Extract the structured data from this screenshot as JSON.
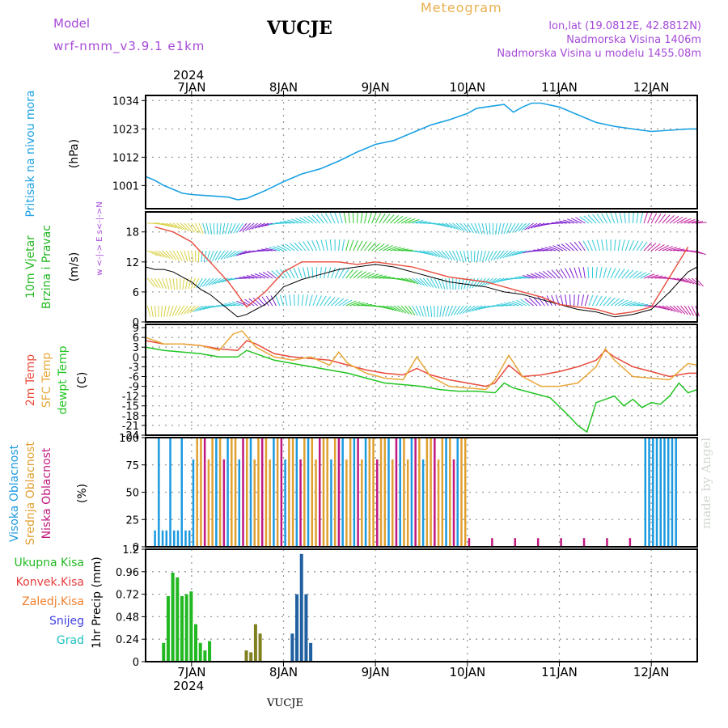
{
  "header": {
    "model_label": "Model",
    "model_name": "wrf-nmm_v3.9.1 e1km",
    "station": "VUCJE",
    "title": "Meteogram",
    "coords": "lon,lat (19.0812E, 42.8812N)",
    "elevation": "Nadmorska Visina 1406m",
    "model_elevation": "Nadmorska Visina u modelu 1455.08m",
    "credit": "made by Angel",
    "footer_station": "VUCJE"
  },
  "colors": {
    "pressure": "#1ba1e2",
    "temp2m": "#e84c3d",
    "sfc": "#e8a838",
    "dew": "#22c522",
    "high_cloud": "#1b9ae0",
    "mid_cloud": "#e0a030",
    "low_cloud": "#c01880",
    "total_precip": "#22b822",
    "conv_precip": "#e83c3c",
    "frozen_precip": "#f08030",
    "snow": "#4040e0",
    "grad": "#20c0c0",
    "header_purple": "#a64ad8",
    "header_orange": "#e8b050"
  },
  "time_axis": {
    "year": "2024",
    "top_labels": [
      "7JAN",
      "8JAN",
      "9JAN",
      "10JAN",
      "11JAN",
      "12JAN"
    ],
    "bottom_labels": [
      "7JAN",
      "8JAN",
      "9JAN",
      "10JAN",
      "11JAN",
      "12JAN"
    ]
  },
  "chart_data": [
    {
      "type": "line",
      "panel": "pressure",
      "ylabel_left": "Pritisak na nivou mora",
      "unit": "(hPa)",
      "y_ticks": [
        "1034",
        "1023",
        "1012",
        "1001"
      ],
      "ylim": [
        992,
        1036
      ],
      "x_days": [
        6.5,
        6.6,
        6.7,
        6.8,
        6.9,
        7.0,
        7.2,
        7.4,
        7.5,
        7.6,
        7.7,
        7.8,
        8.0,
        8.2,
        8.4,
        8.6,
        8.8,
        9.0,
        9.2,
        9.4,
        9.6,
        9.8,
        10.0,
        10.1,
        10.2,
        10.3,
        10.4,
        10.5,
        10.6,
        10.7,
        10.8,
        11.0,
        11.2,
        11.4,
        11.6,
        11.8,
        12.0,
        12.2,
        12.4,
        12.5
      ],
      "values": [
        1004.5,
        1003.0,
        1001.0,
        999.5,
        998.0,
        997.5,
        997.0,
        996.5,
        995.5,
        996.0,
        997.5,
        999.0,
        1002.5,
        1005.5,
        1007.5,
        1010.5,
        1014.0,
        1017.0,
        1018.5,
        1021.5,
        1024.5,
        1026.5,
        1029.0,
        1031.0,
        1031.5,
        1032.0,
        1032.5,
        1029.5,
        1031.5,
        1033.0,
        1033.0,
        1031.5,
        1028.5,
        1025.5,
        1024.0,
        1023.0,
        1022.0,
        1022.5,
        1023.0,
        1023.0
      ]
    },
    {
      "type": "line",
      "panel": "wind",
      "ylabel_left": [
        "10m Vjetar",
        "Brzina i Pravac"
      ],
      "unit": "(m/s)",
      "y_ticks": [
        "18",
        "12",
        "6",
        "0"
      ],
      "ylim": [
        0,
        22
      ],
      "compass": "w <-|-> E  s<-|->N",
      "series": [
        {
          "name": "speed",
          "x_days": [
            6.5,
            6.6,
            6.7,
            6.8,
            6.9,
            7.0,
            7.1,
            7.2,
            7.3,
            7.4,
            7.5,
            7.6,
            7.7,
            7.8,
            7.9,
            8.0,
            8.2,
            8.4,
            8.6,
            8.8,
            9.0,
            9.2,
            9.4,
            9.6,
            9.8,
            10.0,
            10.2,
            10.4,
            10.6,
            10.8,
            11.0,
            11.2,
            11.4,
            11.6,
            11.8,
            12.0,
            12.2,
            12.4,
            12.5
          ],
          "values": [
            11,
            10.5,
            10.5,
            10.0,
            9.0,
            8.0,
            6.5,
            5.5,
            4.0,
            2.5,
            1.0,
            1.5,
            2.5,
            3.5,
            5.0,
            7.0,
            8.5,
            9.5,
            10.5,
            11.0,
            11.5,
            11.0,
            10.0,
            9.0,
            8.0,
            7.5,
            7.0,
            6.0,
            5.5,
            4.5,
            3.5,
            2.5,
            2.0,
            1.0,
            1.5,
            2.5,
            6.0,
            10.0,
            11.0
          ]
        },
        {
          "name": "gust",
          "x_days": [
            6.6,
            6.8,
            7.0,
            7.2,
            7.4,
            7.6,
            7.8,
            8.0,
            8.2,
            8.4,
            8.6,
            8.8,
            9.0,
            9.2,
            9.4,
            9.6,
            9.8,
            10.0,
            10.2,
            10.4,
            10.6,
            10.8,
            11.0,
            11.2,
            11.4,
            11.6,
            11.8,
            12.0,
            12.2,
            12.4
          ],
          "values": [
            19,
            18,
            16,
            12,
            8,
            3,
            6,
            10,
            12,
            12,
            12,
            11.5,
            12,
            11.5,
            11,
            10,
            9,
            8.5,
            8,
            7,
            6,
            5,
            3.5,
            3,
            2.5,
            1.5,
            2,
            3,
            9,
            15
          ]
        }
      ]
    },
    {
      "type": "line",
      "panel": "temperature",
      "ylabel_left": [
        "2m Temp",
        "SFC Temp",
        "dewpt Temp"
      ],
      "unit": "(C)",
      "y_ticks": [
        "9",
        "6",
        "3",
        "0",
        "-3",
        "-6",
        "-9",
        "-12",
        "-15",
        "-18",
        "-21",
        "-24"
      ],
      "ylim": [
        -24,
        10
      ],
      "series": [
        {
          "name": "2m Temp",
          "x_days": [
            6.5,
            6.7,
            6.9,
            7.1,
            7.3,
            7.5,
            7.6,
            7.7,
            7.9,
            8.1,
            8.3,
            8.5,
            8.7,
            8.9,
            9.1,
            9.3,
            9.45,
            9.6,
            9.8,
            10.0,
            10.2,
            10.3,
            10.45,
            10.6,
            10.8,
            11.0,
            11.2,
            11.4,
            11.5,
            11.6,
            11.8,
            12.0,
            12.2,
            12.4,
            12.5
          ],
          "values": [
            5,
            4,
            4,
            3.5,
            2.5,
            2,
            5,
            4,
            1,
            0,
            -0.5,
            -1,
            -2.5,
            -4,
            -5,
            -5.5,
            -3.5,
            -5.5,
            -7,
            -8,
            -9,
            -8,
            -2.5,
            -6,
            -5.5,
            -4.5,
            -3,
            -1,
            2,
            0,
            -3,
            -4.5,
            -6,
            -5,
            -5
          ]
        },
        {
          "name": "SFC Temp",
          "x_days": [
            6.5,
            6.7,
            6.9,
            7.1,
            7.3,
            7.45,
            7.55,
            7.7,
            7.9,
            8.1,
            8.3,
            8.5,
            8.6,
            8.7,
            8.9,
            9.1,
            9.3,
            9.45,
            9.6,
            9.8,
            10.0,
            10.2,
            10.3,
            10.45,
            10.6,
            10.8,
            11.0,
            11.2,
            11.4,
            11.5,
            11.6,
            11.8,
            12.0,
            12.2,
            12.4,
            12.5
          ],
          "values": [
            6,
            4,
            4,
            3.5,
            2,
            7,
            8,
            3,
            0,
            -1,
            0,
            -2.5,
            1.5,
            -2,
            -5,
            -6.5,
            -7,
            0,
            -6,
            -9,
            -9.5,
            -10,
            -7,
            0.5,
            -6,
            -9,
            -9,
            -8,
            -3,
            2.5,
            -1,
            -6,
            -6.5,
            -7,
            -2,
            -2.5
          ]
        },
        {
          "name": "dewpt Temp",
          "x_days": [
            6.5,
            6.7,
            6.9,
            7.1,
            7.3,
            7.5,
            7.6,
            7.7,
            7.9,
            8.1,
            8.3,
            8.5,
            8.7,
            8.9,
            9.1,
            9.3,
            9.5,
            9.7,
            9.9,
            10.1,
            10.3,
            10.4,
            10.5,
            10.7,
            10.9,
            11.1,
            11.2,
            11.3,
            11.4,
            11.5,
            11.6,
            11.7,
            11.8,
            11.9,
            12.0,
            12.1,
            12.2,
            12.3,
            12.4,
            12.5
          ],
          "values": [
            3,
            2,
            1.5,
            1,
            0,
            0,
            2,
            1,
            -1,
            -2,
            -3,
            -4,
            -5,
            -6.5,
            -8,
            -8.5,
            -9,
            -10,
            -10.5,
            -10.5,
            -11,
            -8,
            -9.5,
            -11,
            -12.5,
            -18,
            -21,
            -23,
            -14,
            -13,
            -12,
            -15,
            -13,
            -15.5,
            -14,
            -14.5,
            -12,
            -8,
            -11,
            -10
          ]
        }
      ]
    },
    {
      "type": "bar",
      "panel": "cloud",
      "ylabel_left": [
        "Visoka Oblacnost",
        "Srednja Oblacnost",
        "Niska Oblacnost"
      ],
      "unit": "(%)",
      "y_ticks": [
        "100",
        "75",
        "50",
        "25",
        "0"
      ],
      "ylim": [
        0,
        100
      ]
    },
    {
      "type": "bar",
      "panel": "precip",
      "legend": [
        "Ukupna Kisa",
        "Konvek.Kisa",
        "Zaledj.Kisa",
        "Snijeg",
        "Grad"
      ],
      "ylabel": "1hr Precip (mm)",
      "y_ticks": [
        "1.2",
        "0.96",
        "0.72",
        "0.48",
        "0.24",
        "0"
      ],
      "ylim": [
        0,
        1.2
      ]
    }
  ]
}
